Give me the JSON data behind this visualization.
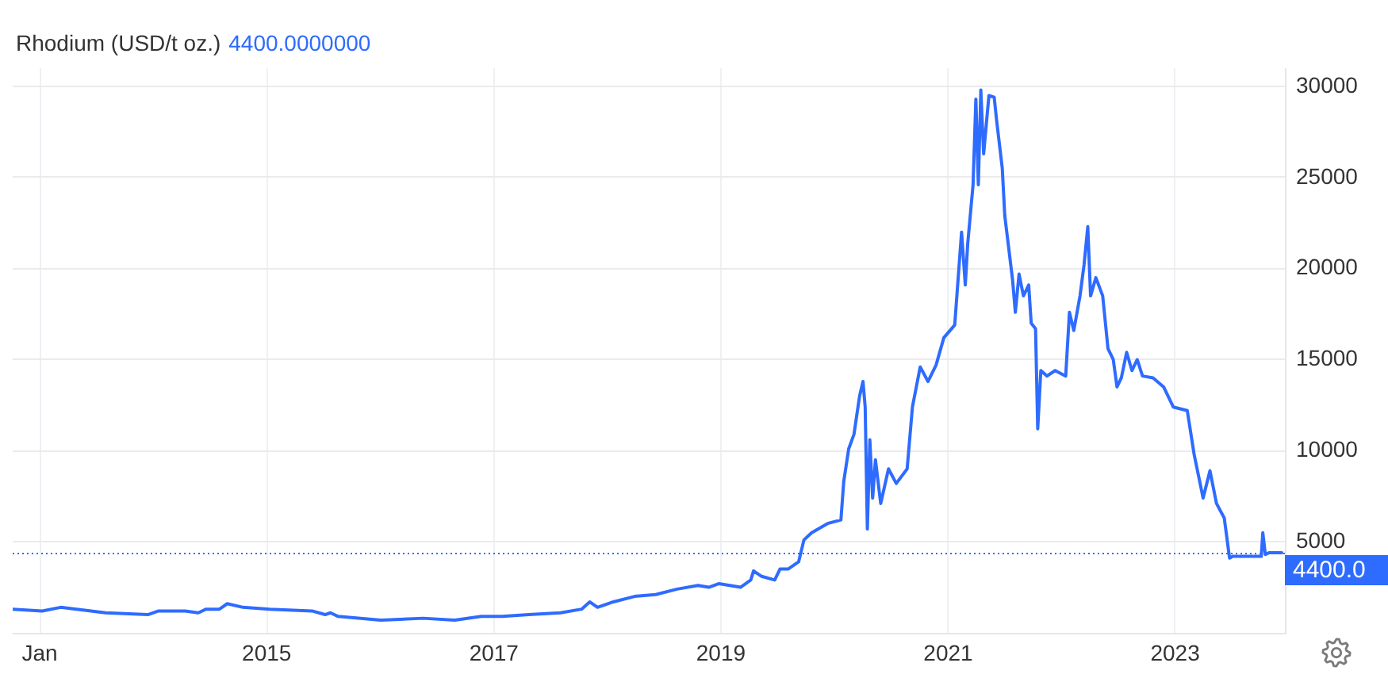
{
  "chart_data": {
    "type": "line",
    "title": "Rhodium (USD/t oz.)",
    "annotations": [
      "4400.0000000"
    ],
    "x": [
      "2012-10-06",
      "2013-01-09",
      "2013-03-09",
      "2013-08-01",
      "2013-12-15",
      "2014-01-18",
      "2014-04-14",
      "2014-05-26",
      "2014-06-20",
      "2014-08-02",
      "2014-08-27",
      "2014-10-17",
      "2015-01-11",
      "2015-05-27",
      "2015-07-08",
      "2015-07-25",
      "2015-08-19",
      "2016-01-03",
      "2016-05-18",
      "2016-08-28",
      "2016-11-21",
      "2017-01-28",
      "2017-04-23",
      "2017-08-03",
      "2017-10-10",
      "2017-11-05",
      "2017-11-30",
      "2018-01-20",
      "2018-03-29",
      "2018-06-05",
      "2018-08-13",
      "2018-10-19",
      "2018-11-23",
      "2018-12-26",
      "2019-03-05",
      "2019-04-07",
      "2019-04-16",
      "2019-05-12",
      "2019-06-23",
      "2019-07-10",
      "2019-08-05",
      "2019-09-08",
      "2019-09-25",
      "2019-10-20",
      "2019-12-10",
      "2020-01-22",
      "2020-01-31",
      "2020-02-16",
      "2020-03-04",
      "2020-03-22",
      "2020-04-02",
      "2020-04-09",
      "2020-04-16",
      "2020-04-24",
      "2020-05-03",
      "2020-05-12",
      "2020-05-29",
      "2020-06-23",
      "2020-07-18",
      "2020-08-22",
      "2020-09-08",
      "2020-10-03",
      "2020-10-28",
      "2020-11-23",
      "2020-12-18",
      "2021-01-22",
      "2021-02-13",
      "2021-02-25",
      "2021-03-05",
      "2021-03-22",
      "2021-03-31",
      "2021-04-08",
      "2021-04-16",
      "2021-04-25",
      "2021-05-12",
      "2021-05-29",
      "2021-06-06",
      "2021-06-24",
      "2021-07-02",
      "2021-07-27",
      "2021-08-05",
      "2021-08-17",
      "2021-08-31",
      "2021-09-17",
      "2021-09-25",
      "2021-10-09",
      "2021-10-16",
      "2021-10-26",
      "2021-11-15",
      "2021-12-11",
      "2022-01-14",
      "2022-01-26",
      "2022-02-09",
      "2022-03-01",
      "2022-03-14",
      "2022-03-26",
      "2022-04-04",
      "2022-04-21",
      "2022-05-13",
      "2022-05-30",
      "2022-06-16",
      "2022-06-28",
      "2022-07-12",
      "2022-07-29",
      "2022-08-15",
      "2022-09-01",
      "2022-09-18",
      "2022-10-22",
      "2022-11-25",
      "2022-12-26",
      "2023-02-09",
      "2023-03-03",
      "2023-04-01",
      "2023-04-23",
      "2023-05-14",
      "2023-06-08",
      "2023-06-25",
      "2023-07-05",
      "2023-10-05",
      "2023-10-10",
      "2023-10-18",
      "2023-10-31",
      "2023-12-10"
    ],
    "series": [
      {
        "color": "#2e6bff",
        "values": [
          1300,
          1200,
          1400,
          1100,
          1000,
          1200,
          1200,
          1100,
          1300,
          1300,
          1600,
          1400,
          1300,
          1200,
          1000,
          1100,
          900,
          700,
          800,
          700,
          900,
          900,
          1000,
          1100,
          1300,
          1700,
          1400,
          1700,
          2000,
          2100,
          2400,
          2600,
          2500,
          2700,
          2500,
          2900,
          3400,
          3100,
          2900,
          3500,
          3500,
          3900,
          5100,
          5500,
          6000,
          6200,
          8300,
          10100,
          10900,
          13000,
          13800,
          12400,
          5700,
          10600,
          7400,
          9500,
          7100,
          9000,
          8200,
          9000,
          12400,
          14600,
          13800,
          14700,
          16200,
          16900,
          22000,
          19100,
          21400,
          24600,
          29300,
          24600,
          29800,
          26300,
          29500,
          29400,
          28100,
          25500,
          22900,
          19400,
          17600,
          19700,
          18500,
          19100,
          17000,
          16700,
          11200,
          14400,
          14100,
          14400,
          14100,
          17600,
          16600,
          18500,
          20200,
          22300,
          18500,
          19500,
          18500,
          15600,
          15000,
          13500,
          14000,
          15400,
          14400,
          15000,
          14100,
          14000,
          13500,
          12400,
          12200,
          9800,
          7400,
          8900,
          7100,
          6300,
          4100,
          4200,
          4200,
          5500,
          4300,
          4400,
          4400
        ]
      }
    ],
    "xlim": [
      "2012-10-06",
      "2023-12-20"
    ],
    "xticks": [
      {
        "value": "2013-01-01",
        "label": "Jan"
      },
      {
        "value": "2015-01-01",
        "label": "2015"
      },
      {
        "value": "2017-01-01",
        "label": "2017"
      },
      {
        "value": "2019-01-01",
        "label": "2019"
      },
      {
        "value": "2021-01-01",
        "label": "2021"
      },
      {
        "value": "2023-01-01",
        "label": "2023"
      }
    ],
    "ylim": [
      0,
      31000
    ],
    "yticks": [
      5000,
      10000,
      15000,
      20000,
      25000,
      30000
    ],
    "ref_lines": [
      {
        "axis": "y",
        "value": 4400,
        "label": "4400.0",
        "color": "#2e6bff",
        "line_style": "dotted"
      }
    ],
    "grid": true,
    "marker": "none"
  }
}
